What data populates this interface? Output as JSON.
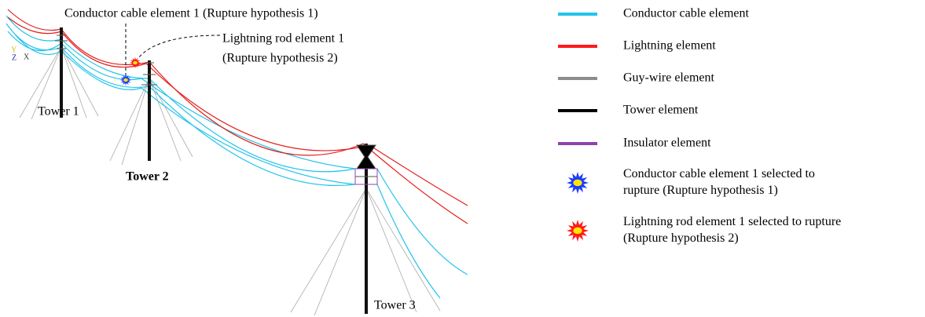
{
  "annotations": {
    "conductor_rupture": "Conductor cable element 1 (Rupture hypothesis 1)",
    "lightning_rupture": [
      "Lightning rod element 1",
      "(Rupture hypothesis 2)"
    ]
  },
  "towers": [
    "Tower 1",
    "Tower 2",
    "Tower 3"
  ],
  "axis_triad": [
    "Y",
    "Z",
    "X"
  ],
  "legend": {
    "items": [
      {
        "label": [
          "Conductor cable element"
        ],
        "kind": "line",
        "color": "#22c4ea"
      },
      {
        "label": [
          "Lightning element"
        ],
        "kind": "line",
        "color": "#ff1a1a"
      },
      {
        "label": [
          "Guy-wire element"
        ],
        "kind": "line",
        "color": "#8c8c8c"
      },
      {
        "label": [
          "Tower element"
        ],
        "kind": "line",
        "color": "#000000"
      },
      {
        "label": [
          "Insulator element"
        ],
        "kind": "line",
        "color": "#8e44ad"
      },
      {
        "label": [
          "Conductor cable element 1 selected to",
          "rupture (Rupture hypothesis 1)"
        ],
        "kind": "burst",
        "color": "#1a3cff"
      },
      {
        "label": [
          "Lightning rod element 1 selected to rupture",
          "(Rupture hypothesis 2)"
        ],
        "kind": "burst",
        "color": "#ff1a1a"
      }
    ]
  }
}
